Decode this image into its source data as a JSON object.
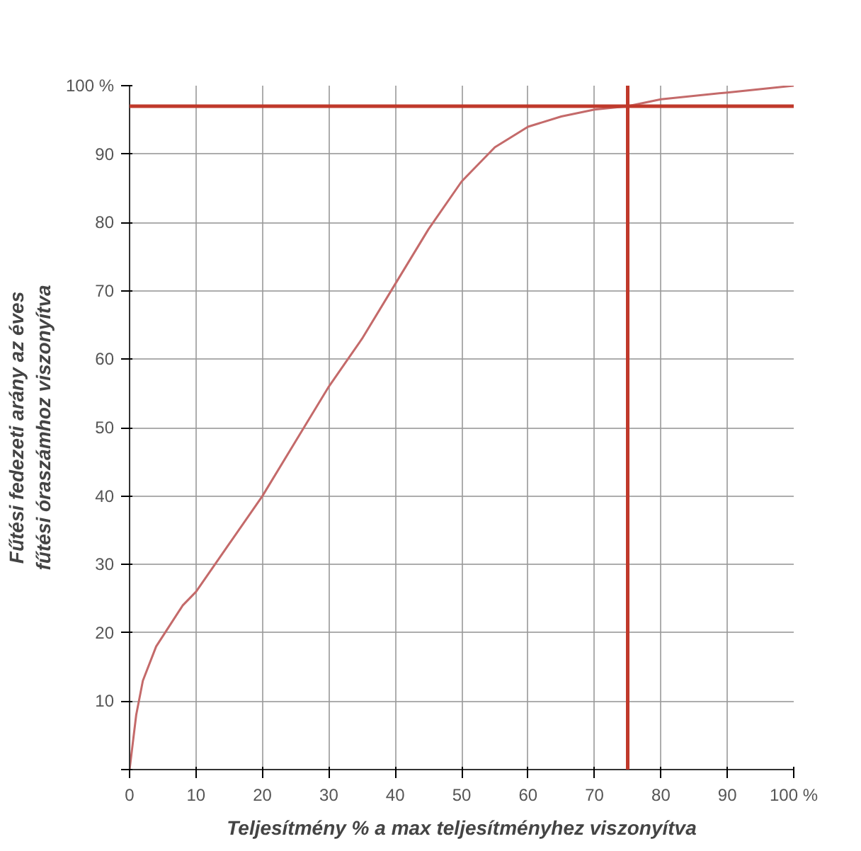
{
  "chart_data": {
    "type": "line",
    "xlabel": "Teljesítmény % a max teljesítményhez viszonyítva",
    "ylabel": "Fűtési fedezeti arány az éves\nfűtési óraszámhoz viszonyítva",
    "x": [
      0,
      1,
      2,
      4,
      6,
      8,
      10,
      15,
      20,
      25,
      30,
      35,
      40,
      45,
      50,
      55,
      60,
      65,
      70,
      75,
      80,
      90,
      100
    ],
    "series": [
      {
        "color": "#c46a6a",
        "values": [
          0,
          8,
          13,
          18,
          21,
          24,
          26,
          33,
          40,
          48,
          56,
          63,
          71,
          79,
          86,
          91,
          94,
          95.5,
          96.5,
          97,
          98,
          99,
          100
        ]
      }
    ],
    "xlim": [
      0,
      100
    ],
    "ylim": [
      0,
      100
    ],
    "xticks": [
      0,
      10,
      20,
      30,
      40,
      50,
      60,
      70,
      80,
      90,
      {
        "value": 100,
        "label": "100 %"
      }
    ],
    "yticks": [
      {
        "value": 0,
        "label": null
      },
      10,
      20,
      30,
      40,
      50,
      60,
      70,
      80,
      90,
      {
        "value": 100,
        "label": "100 %"
      }
    ],
    "ref_lines": [
      {
        "axis": "y",
        "value": 97,
        "label": null,
        "color": "#c0392b"
      },
      {
        "axis": "x",
        "value": 75,
        "label": null,
        "color": "#c0392b"
      }
    ],
    "grid": true,
    "marker": "none",
    "line_style": "solid"
  }
}
